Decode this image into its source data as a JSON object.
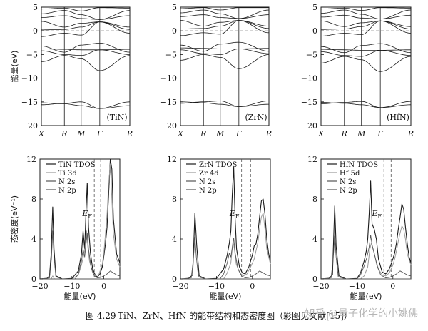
{
  "chart_data": [
    {
      "type": "line",
      "subtype": "band_structure",
      "label": "(TiN)",
      "ylabel": "能量(eV)",
      "ylim": [
        -20,
        5
      ],
      "yticks": [
        -20,
        -15,
        -10,
        -5,
        0,
        5
      ],
      "kpoints": [
        "X",
        "R",
        "M",
        "Γ",
        "R"
      ],
      "fermi_level": 0,
      "bands": [
        [
          -15.2,
          -15.4,
          -15.8,
          -16.4,
          -15.8
        ],
        [
          -15.6,
          -15.3,
          -15.0,
          -16.4,
          -15.0
        ],
        [
          -6.5,
          -5.2,
          -5.9,
          -8.4,
          -5.2
        ],
        [
          -4.2,
          -5.0,
          -5.2,
          -4.0,
          -5.0
        ],
        [
          -3.8,
          -3.9,
          -4.0,
          -4.0,
          -3.9
        ],
        [
          -3.2,
          -4.5,
          -3.0,
          -2.6,
          -4.5
        ],
        [
          -1.2,
          -0.5,
          -0.9,
          1.9,
          -0.5
        ],
        [
          0.2,
          0.3,
          0.8,
          1.9,
          0.3
        ],
        [
          2.0,
          0.8,
          1.6,
          1.9,
          0.8
        ],
        [
          2.8,
          3.2,
          2.6,
          2.4,
          3.2
        ],
        [
          3.6,
          4.3,
          3.4,
          2.4,
          4.3
        ],
        [
          4.6,
          4.8,
          4.2,
          4.9,
          4.8
        ]
      ]
    },
    {
      "type": "line",
      "subtype": "band_structure",
      "label": "(ZrN)",
      "ylabel": "",
      "ylim": [
        -20,
        5
      ],
      "yticks": [
        -20,
        -15,
        -10,
        -5,
        0,
        5
      ],
      "kpoints": [
        "X",
        "R",
        "M",
        "Γ",
        "R"
      ],
      "fermi_level": 0,
      "bands": [
        [
          -15.0,
          -15.2,
          -15.5,
          -16.0,
          -15.5
        ],
        [
          -15.3,
          -15.0,
          -14.8,
          -16.0,
          -14.8
        ],
        [
          -6.2,
          -5.0,
          -5.6,
          -8.0,
          -5.0
        ],
        [
          -4.0,
          -4.8,
          -5.0,
          -3.8,
          -4.8
        ],
        [
          -3.6,
          -3.7,
          -3.8,
          -3.8,
          -3.7
        ],
        [
          -3.0,
          -4.3,
          -2.8,
          -2.4,
          -4.3
        ],
        [
          -1.0,
          -0.4,
          -0.7,
          2.2,
          -0.4
        ],
        [
          0.4,
          0.5,
          1.0,
          2.2,
          0.5
        ],
        [
          2.2,
          1.0,
          1.8,
          2.2,
          1.0
        ],
        [
          3.0,
          3.4,
          2.8,
          2.6,
          3.4
        ],
        [
          3.8,
          4.4,
          3.6,
          2.6,
          4.4
        ],
        [
          4.7,
          4.9,
          4.4,
          4.9,
          4.9
        ]
      ]
    },
    {
      "type": "line",
      "subtype": "band_structure",
      "label": "(HfN)",
      "ylabel": "",
      "ylim": [
        -20,
        5
      ],
      "yticks": [
        -20,
        -15,
        -10,
        -5,
        0,
        5
      ],
      "kpoints": [
        "X",
        "R",
        "M",
        "Γ",
        "R"
      ],
      "fermi_level": 0,
      "bands": [
        [
          -15.1,
          -15.3,
          -15.6,
          -16.2,
          -15.6
        ],
        [
          -15.4,
          -15.1,
          -14.9,
          -16.2,
          -14.9
        ],
        [
          -6.8,
          -5.4,
          -6.1,
          -8.6,
          -5.4
        ],
        [
          -4.4,
          -5.2,
          -5.4,
          -4.1,
          -5.2
        ],
        [
          -3.9,
          -4.0,
          -4.1,
          -4.1,
          -4.0
        ],
        [
          -3.3,
          -4.6,
          -3.1,
          -2.7,
          -4.6
        ],
        [
          -1.1,
          -0.5,
          -0.8,
          2.1,
          -0.5
        ],
        [
          0.3,
          0.4,
          0.9,
          2.1,
          0.4
        ],
        [
          2.1,
          0.9,
          1.7,
          2.1,
          0.9
        ],
        [
          2.9,
          3.3,
          2.7,
          2.5,
          3.3
        ],
        [
          3.7,
          4.4,
          3.5,
          2.5,
          4.4
        ],
        [
          4.6,
          4.8,
          4.3,
          4.9,
          4.8
        ]
      ]
    },
    {
      "type": "line",
      "subtype": "density_of_states",
      "xlabel": "能量(eV)",
      "ylabel": "态密度(eV⁻¹)",
      "xlim": [
        -20,
        5
      ],
      "ylim": [
        0,
        12
      ],
      "xticks": [
        -20,
        -10,
        0
      ],
      "yticks": [
        0,
        4,
        8,
        12
      ],
      "annotation": "E",
      "annotation_sub": "F",
      "vlines": [
        -3,
        -1
      ],
      "series": [
        {
          "name": "TiN TDOS",
          "style": "solid-dark",
          "x": [
            -20,
            -18,
            -17,
            -16.5,
            -16,
            -15.6,
            -15,
            -13,
            -10,
            -8,
            -7,
            -6.5,
            -6,
            -5.6,
            -5.2,
            -4.8,
            -4.2,
            -3.5,
            -2.6,
            -2,
            -1.2,
            -0.5,
            0,
            0.5,
            1,
            1.5,
            2,
            2.5,
            3,
            4,
            5
          ],
          "y": [
            0,
            0,
            0.3,
            2.5,
            7.2,
            3,
            0.3,
            0,
            0.05,
            0.8,
            2.5,
            4.8,
            3,
            6.6,
            9.6,
            5.2,
            2.6,
            1,
            0.3,
            0.2,
            0.5,
            1.2,
            2.3,
            3.5,
            5.2,
            8.5,
            12,
            11,
            6,
            2.5,
            1.6
          ]
        },
        {
          "name": "Ti 3d",
          "style": "solid-light",
          "x": [
            -20,
            -16.5,
            -16,
            -15.5,
            -10,
            -8,
            -7,
            -6,
            -5.4,
            -5,
            -4.5,
            -3.5,
            -2.5,
            -1.5,
            -0.5,
            0,
            0.5,
            1,
            1.5,
            2,
            2.5,
            3,
            4,
            5
          ],
          "y": [
            0,
            0,
            0.3,
            0,
            0,
            0.4,
            1.4,
            2.8,
            4.8,
            3.2,
            1.8,
            0.6,
            0.3,
            0.5,
            1.5,
            2.6,
            4.5,
            6.5,
            9.5,
            11.5,
            8,
            4.5,
            2,
            1.2
          ]
        },
        {
          "name": "N 2s",
          "style": "solid-mid",
          "x": [
            -20,
            -17,
            -16.4,
            -16,
            -15.6,
            -15,
            -13,
            5
          ],
          "y": [
            0,
            0.1,
            2,
            4.8,
            2.2,
            0.2,
            0,
            0
          ]
        },
        {
          "name": "N 2p",
          "style": "solid-mid",
          "x": [
            -20,
            -9,
            -8,
            -7,
            -6.5,
            -6,
            -5.5,
            -5.2,
            -4.8,
            -4,
            -3,
            -2,
            -1,
            0,
            1,
            2,
            3,
            4,
            5
          ],
          "y": [
            0,
            0,
            0.5,
            1.8,
            3,
            2.2,
            3.8,
            4.6,
            3,
            1.2,
            0.3,
            0.1,
            0.15,
            0.3,
            0.5,
            0.8,
            0.6,
            0.4,
            0.3
          ]
        }
      ]
    },
    {
      "type": "line",
      "subtype": "density_of_states",
      "xlabel": "能量(eV)",
      "ylabel": "",
      "xlim": [
        -20,
        5
      ],
      "ylim": [
        0,
        12
      ],
      "xticks": [
        -20,
        -10,
        0
      ],
      "yticks": [
        0,
        4,
        8,
        12
      ],
      "annotation": "E",
      "annotation_sub": "F",
      "vlines": [
        -3,
        -0.5
      ],
      "series": [
        {
          "name": "ZrN TDOS",
          "style": "solid-dark",
          "x": [
            -20,
            -18,
            -16.6,
            -16,
            -15.5,
            -14.8,
            -13,
            -10,
            -8,
            -7,
            -6.4,
            -6,
            -5.6,
            -5.2,
            -4.8,
            -4.4,
            -3.6,
            -2.8,
            -2,
            -1,
            0,
            0.5,
            1,
            1.5,
            2,
            2.5,
            3,
            3.5,
            4,
            4.5,
            5
          ],
          "y": [
            0,
            0,
            0.4,
            6.6,
            3.4,
            0.3,
            0,
            0.05,
            1,
            2.4,
            3.6,
            4.8,
            8.5,
            11.2,
            6,
            3,
            1.2,
            0.6,
            0.5,
            1.2,
            2.4,
            3.3,
            3.5,
            4.5,
            6.2,
            7.8,
            8,
            6.5,
            4,
            2.6,
            1.7
          ]
        },
        {
          "name": "Zr 4d",
          "style": "solid-light",
          "x": [
            -20,
            -8,
            -7,
            -6,
            -5.4,
            -5,
            -4.5,
            -3.5,
            -2.5,
            -1.5,
            -0.5,
            0.5,
            1,
            1.5,
            2,
            2.5,
            3,
            3.5,
            4,
            5
          ],
          "y": [
            0,
            0,
            0.6,
            1.6,
            3.8,
            3,
            1.5,
            0.6,
            0.3,
            0.5,
            1.2,
            2,
            2.8,
            3.6,
            5,
            6.2,
            6.6,
            5,
            3,
            1.5
          ]
        },
        {
          "name": "N 2s",
          "style": "solid-mid",
          "x": [
            -20,
            -17,
            -16.4,
            -16,
            -15.6,
            -15,
            -13,
            5
          ],
          "y": [
            0,
            0.1,
            2,
            4.2,
            2.2,
            0.2,
            0,
            0
          ]
        },
        {
          "name": "N 2p",
          "style": "solid-mid",
          "x": [
            -20,
            -9,
            -8,
            -7,
            -6.4,
            -6,
            -5.5,
            -5.2,
            -4.8,
            -4,
            -3,
            -2,
            -1,
            0,
            1,
            2,
            3,
            4,
            5
          ],
          "y": [
            0,
            0,
            0.5,
            1.6,
            2.6,
            2.2,
            3.4,
            4.1,
            2.6,
            1,
            0.3,
            0.1,
            0.15,
            0.3,
            0.5,
            0.8,
            0.6,
            0.4,
            0.3
          ]
        }
      ]
    },
    {
      "type": "line",
      "subtype": "density_of_states",
      "xlabel": "能量(eV)",
      "ylabel": "",
      "xlim": [
        -20,
        5
      ],
      "ylim": [
        0,
        12
      ],
      "xticks": [
        -20,
        -10,
        0
      ],
      "yticks": [
        0,
        4,
        8,
        12
      ],
      "annotation": "E",
      "annotation_sub": "F",
      "vlines": [
        -2.5,
        -0.5
      ],
      "series": [
        {
          "name": "HfN TDOS",
          "style": "solid-dark",
          "x": [
            -20,
            -18,
            -16.8,
            -16.2,
            -15.8,
            -15,
            -13,
            -10,
            -9,
            -8,
            -7.4,
            -7,
            -6.6,
            -6.2,
            -5.8,
            -5.2,
            -4.6,
            -4,
            -3,
            -2,
            -1,
            0,
            0.5,
            1,
            1.5,
            2,
            2.5,
            3,
            3.5,
            4,
            4.5,
            5
          ],
          "y": [
            0,
            0,
            0.4,
            7.3,
            3.3,
            0.3,
            0,
            0.05,
            0.6,
            1.8,
            2.8,
            4,
            6.5,
            9.8,
            5.5,
            5,
            4,
            2,
            0.7,
            0.5,
            1,
            2,
            2.6,
            3.6,
            5,
            6.2,
            7.5,
            7,
            5.2,
            3.5,
            2.2,
            1.6
          ]
        },
        {
          "name": "Hf 5d",
          "style": "solid-light",
          "x": [
            -20,
            -9,
            -8,
            -7,
            -6.4,
            -6,
            -5.4,
            -4.8,
            -4,
            -3,
            -2,
            -1,
            0,
            0.5,
            1,
            1.5,
            2,
            2.5,
            3,
            3.5,
            4,
            5
          ],
          "y": [
            0,
            0,
            0.3,
            1.2,
            3,
            3.6,
            2.8,
            2,
            1,
            0.4,
            0.3,
            0.6,
            1.4,
            2,
            2.8,
            3.8,
            4.6,
            5.3,
            5,
            4,
            2.5,
            1.4
          ]
        },
        {
          "name": "N 2s",
          "style": "solid-mid",
          "x": [
            -20,
            -17.2,
            -16.6,
            -16.2,
            -15.8,
            -15.2,
            -13,
            5
          ],
          "y": [
            0,
            0.1,
            2,
            4.3,
            2.2,
            0.2,
            0,
            0
          ]
        },
        {
          "name": "N 2p",
          "style": "solid-mid",
          "x": [
            -20,
            -10,
            -9,
            -8,
            -7.2,
            -6.6,
            -6.2,
            -5.8,
            -5.2,
            -4.4,
            -3.4,
            -2,
            -1,
            0,
            1,
            2,
            3,
            4,
            5
          ],
          "y": [
            0,
            0,
            0.4,
            1.3,
            2.2,
            3.2,
            4.4,
            3.4,
            2.6,
            1.3,
            0.4,
            0.1,
            0.15,
            0.3,
            0.5,
            0.8,
            0.6,
            0.4,
            0.3
          ]
        }
      ]
    }
  ],
  "caption": {
    "figure_no": "图 4.29",
    "text": "TiN、ZrN、HfN 的能带结构和态密度图（彩图见文献[15]）"
  },
  "watermark": "知乎 @量子化学的小姚佛",
  "colors": {
    "dark": "#1a1a1a",
    "mid": "#555555",
    "light": "#9a9a9a",
    "dash": "#555555"
  }
}
